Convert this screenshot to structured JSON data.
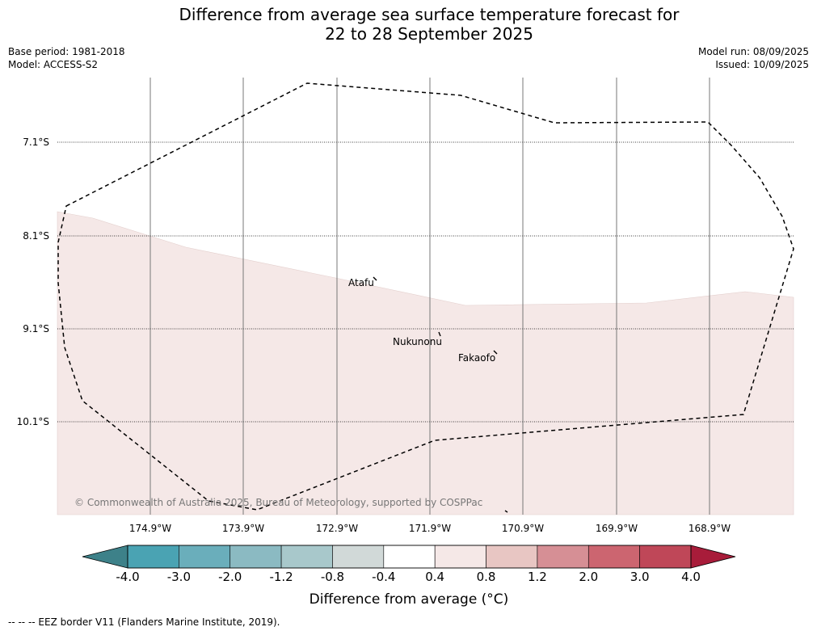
{
  "title": {
    "line1": "Difference from average sea surface temperature forecast for",
    "line2": "22 to 28 September 2025"
  },
  "meta": {
    "base_period": "Base period: 1981-2018",
    "model": "Model: ACCESS-S2",
    "model_run": "Model run: 08/09/2025",
    "issued": "Issued: 10/09/2025"
  },
  "map": {
    "lat_labels": [
      "7.1°S",
      "8.1°S",
      "9.1°S",
      "10.1°S"
    ],
    "lon_labels": [
      "174.9°W",
      "173.9°W",
      "172.9°W",
      "171.9°W",
      "170.9°W",
      "169.9°W",
      "168.9°W"
    ],
    "places": [
      "Atafu",
      "Nukunonu",
      "Fakaofo"
    ],
    "copyright": "© Commonwealth of Australia 2025, Bureau of Meteorology, supported by COSPPac",
    "shaded_category": "0.4 to 0.8",
    "shaded_color": "#f5e8e7"
  },
  "colorbar": {
    "ticks": [
      "-4.0",
      "-3.0",
      "-2.0",
      "-1.2",
      "-0.8",
      "-0.4",
      "0.4",
      "0.8",
      "1.2",
      "2.0",
      "3.0",
      "4.0"
    ],
    "colors": [
      "#4aa3b3",
      "#6aaebb",
      "#8bbac2",
      "#a8c8cb",
      "#d1d9d8",
      "#ffffff",
      "#f5e8e7",
      "#e8c6c3",
      "#d68f95",
      "#cc6570",
      "#bf4758"
    ],
    "low_extend_color": "#3d8189",
    "high_extend_color": "#a81c3a",
    "label": "Difference from average (°C)"
  },
  "footer": {
    "eez_note": "--  --  -- EEZ border V11 (Flanders Marine Institute, 2019)."
  }
}
